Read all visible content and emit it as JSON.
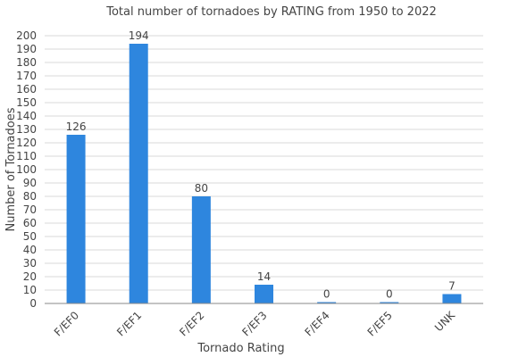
{
  "chart_data": {
    "type": "bar",
    "title": "Total number of tornadoes by RATING from 1950 to 2022",
    "xlabel": "Tornado Rating",
    "ylabel": "Number of Tornadoes",
    "categories": [
      "F/EF0",
      "F/EF1",
      "F/EF2",
      "F/EF3",
      "F/EF4",
      "F/EF5",
      "UNK"
    ],
    "values": [
      126,
      194,
      80,
      14,
      0,
      0,
      7
    ],
    "value_labels": [
      "126",
      "194",
      "80",
      "14",
      "0",
      "0",
      "7"
    ],
    "yticks": [
      0,
      10,
      20,
      30,
      40,
      50,
      60,
      70,
      80,
      90,
      100,
      110,
      120,
      130,
      140,
      150,
      160,
      170,
      180,
      190,
      200
    ],
    "ytick_labels": [
      "0",
      "10",
      "20",
      "30",
      "40",
      "50",
      "60",
      "70",
      "80",
      "90",
      "100",
      "110",
      "120",
      "130",
      "140",
      "150",
      "160",
      "170",
      "180",
      "190",
      "200"
    ],
    "ylim": [
      0,
      200
    ],
    "grid": true,
    "bar_color": "#2e86de"
  }
}
